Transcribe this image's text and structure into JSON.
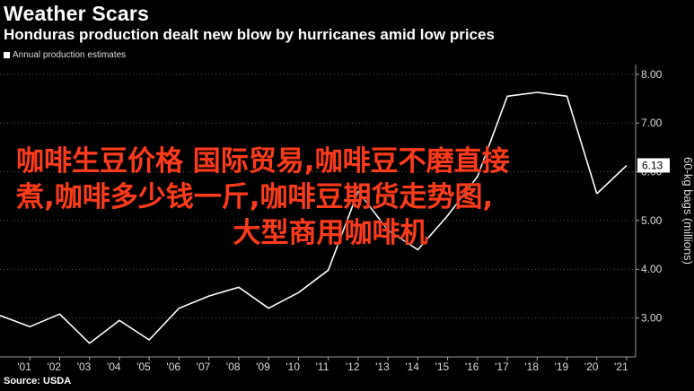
{
  "header": {
    "title": "Weather Scars",
    "subtitle": "Honduras production dealt new blow by hurricanes amid low prices"
  },
  "source": "Source: USDA",
  "overlay": {
    "line1": "咖啡生豆价格 国际贸易,咖啡豆不磨直接",
    "line2": "煮,咖啡多少钱一斤,咖啡豆期货走势图,",
    "line3": "大型商用咖啡机"
  },
  "colors": {
    "background": "#000000",
    "line": "#ffffff",
    "overlay_text": "#ff3b1a",
    "current_label_bg": "#ffffff"
  },
  "chart_data": {
    "type": "line",
    "title": "Weather Scars",
    "subtitle": "Honduras production dealt new blow by hurricanes amid low prices",
    "ylabel": "60-kg bags (millions)",
    "ylim": [
      2.2,
      8.2
    ],
    "yticks": [
      "3.00",
      "4.00",
      "5.00",
      "6.00",
      "7.00",
      "8.00"
    ],
    "ytick_values": [
      3,
      4,
      5,
      6,
      7,
      8
    ],
    "xtick_labels": [
      "'01",
      "'02",
      "'03",
      "'04",
      "'05",
      "'06",
      "'07",
      "'08",
      "'09",
      "'10",
      "'11",
      "'12",
      "'13",
      "'14",
      "'15",
      "'16",
      "'17",
      "'18",
      "'19",
      "'20",
      "'21"
    ],
    "xtick_years": [
      2001,
      2002,
      2003,
      2004,
      2005,
      2006,
      2007,
      2008,
      2009,
      2010,
      2011,
      2012,
      2013,
      2014,
      2015,
      2016,
      2017,
      2018,
      2019,
      2020,
      2021
    ],
    "xlim": [
      2000,
      2021.3
    ],
    "legend": "Annual production estimates",
    "legend_position": "top-left",
    "current_value_label": "6.13",
    "series": [
      {
        "name": "Annual production estimates",
        "x": [
          2000,
          2001,
          2002,
          2003,
          2004,
          2005,
          2006,
          2007,
          2008,
          2009,
          2010,
          2011,
          2012,
          2013,
          2014,
          2015,
          2016,
          2017,
          2018,
          2019,
          2020
        ],
        "y": [
          3.05,
          2.82,
          3.08,
          2.48,
          2.95,
          2.55,
          3.2,
          3.45,
          3.63,
          3.2,
          3.52,
          3.98,
          5.6,
          4.8,
          4.4,
          5.1,
          5.9,
          7.55,
          7.63,
          7.55,
          5.55
        ]
      }
    ],
    "last_segment": {
      "x": [
        2020,
        2021
      ],
      "y": [
        5.55,
        6.13
      ]
    }
  }
}
